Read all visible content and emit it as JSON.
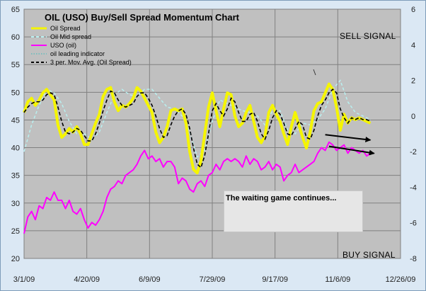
{
  "chart_data": {
    "type": "line",
    "title": "OIL (USO) Buy/Sell Spread Momentum Chart",
    "x_labels": [
      "3/1/09",
      "4/20/09",
      "6/9/09",
      "7/29/09",
      "9/17/09",
      "11/6/09",
      "12/26/09"
    ],
    "x_range": [
      "3/1/09",
      "12/26/09"
    ],
    "y_left": {
      "ticks": [
        20,
        25,
        30,
        35,
        40,
        45,
        50,
        55,
        60,
        65
      ],
      "range": [
        20,
        65
      ]
    },
    "y_right": {
      "ticks": [
        -8,
        -6,
        -4,
        -2,
        0,
        2,
        4,
        6
      ],
      "range": [
        -8,
        6
      ]
    },
    "grid": true,
    "legend_position": "top-left",
    "legend": [
      {
        "label": "Oil Spread",
        "style": "solid",
        "color": "#f5f500"
      },
      {
        "label": "Oil Mid spread",
        "style": "dashed",
        "color": "#b8f0f0"
      },
      {
        "label": "USO (oil)",
        "style": "solid",
        "color": "#ff00ff"
      },
      {
        "label": "oil leading indicator",
        "style": "dotted",
        "color": "#33bbbb"
      },
      {
        "label": "3 per. Mov. Avg. (Oil Spread)",
        "style": "dashed",
        "color": "#000000"
      }
    ],
    "signals": {
      "sell": "SELL SIGNAL",
      "buy": "BUY SIGNAL"
    },
    "annotation": "The waiting game continues...",
    "series": [
      {
        "name": "Oil Spread",
        "axis": "right",
        "color": "#f5f500",
        "x": [
          "3/1/09",
          "3/4/09",
          "3/7/09",
          "3/10/09",
          "3/13/09",
          "3/16/09",
          "3/19/09",
          "3/22/09",
          "3/25/09",
          "3/28/09",
          "3/31/09",
          "4/3/09",
          "4/6/09",
          "4/9/09",
          "4/12/09",
          "4/15/09",
          "4/18/09",
          "4/21/09",
          "4/24/09",
          "4/27/09",
          "4/30/09",
          "5/3/09",
          "5/6/09",
          "5/9/09",
          "5/12/09",
          "5/15/09",
          "5/18/09",
          "5/21/09",
          "5/24/09",
          "5/27/09",
          "5/30/09",
          "6/2/09",
          "6/5/09",
          "6/8/09",
          "6/11/09",
          "6/14/09",
          "6/17/09",
          "6/20/09",
          "6/23/09",
          "6/26/09",
          "6/29/09",
          "7/2/09",
          "7/5/09",
          "7/8/09",
          "7/11/09",
          "7/14/09",
          "7/17/09",
          "7/20/09",
          "7/23/09",
          "7/26/09",
          "7/29/09",
          "8/1/09",
          "8/4/09",
          "8/7/09",
          "8/10/09",
          "8/13/09",
          "8/16/09",
          "8/19/09",
          "8/22/09",
          "8/25/09",
          "8/28/09",
          "8/31/09",
          "9/3/09",
          "9/6/09",
          "9/9/09",
          "9/12/09",
          "9/15/09",
          "9/18/09",
          "9/21/09",
          "9/24/09",
          "9/27/09",
          "9/30/09",
          "10/3/09",
          "10/6/09",
          "10/9/09",
          "10/12/09",
          "10/15/09",
          "10/18/09",
          "10/21/09",
          "10/24/09",
          "10/27/09",
          "10/30/09",
          "11/2/09",
          "11/5/09",
          "11/8/09",
          "11/11/09",
          "11/14/09",
          "11/17/09",
          "11/20/09",
          "11/23/09",
          "11/26/09",
          "11/29/09",
          "12/2/09"
        ],
        "y": [
          0.2,
          0.8,
          1.0,
          0.6,
          0.9,
          1.3,
          1.5,
          1.2,
          0.9,
          -0.5,
          -1.2,
          -1.0,
          -0.7,
          -0.9,
          -0.6,
          -1.0,
          -1.6,
          -1.6,
          -1.0,
          -0.4,
          0.1,
          1.1,
          1.5,
          1.6,
          0.8,
          0.3,
          0.6,
          0.5,
          0.7,
          1.0,
          1.6,
          1.4,
          1.0,
          0.6,
          0.2,
          -0.9,
          -1.5,
          -1.2,
          -0.6,
          0.3,
          0.4,
          0.3,
          0.4,
          -0.4,
          -2.0,
          -3.0,
          -3.2,
          -2.5,
          -1.0,
          0.5,
          1.3,
          0.3,
          -0.6,
          0.4,
          1.3,
          1.2,
          0.0,
          -0.6,
          -0.4,
          0.2,
          0.6,
          -0.3,
          -1.2,
          -1.5,
          -1.1,
          0.2,
          0.6,
          0.1,
          -0.3,
          -1.0,
          -1.6,
          -0.6,
          0.2,
          -0.5,
          -1.2,
          -1.8,
          -0.9,
          0.3,
          0.7,
          0.8,
          1.3,
          1.8,
          1.5,
          0.5,
          -0.8,
          0.1,
          -0.4,
          -0.1,
          -0.2,
          -0.1,
          -0.2,
          -0.3,
          -0.4
        ]
      },
      {
        "name": "3 per. Mov. Avg. (Oil Spread)",
        "axis": "right",
        "color": "#000000",
        "x": [
          "3/1/09",
          "3/4/09",
          "3/7/09",
          "3/10/09",
          "3/13/09",
          "3/16/09",
          "3/19/09",
          "3/22/09",
          "3/25/09",
          "3/28/09",
          "3/31/09",
          "4/3/09",
          "4/6/09",
          "4/9/09",
          "4/12/09",
          "4/15/09",
          "4/18/09",
          "4/21/09",
          "4/24/09",
          "4/27/09",
          "4/30/09",
          "5/3/09",
          "5/6/09",
          "5/9/09",
          "5/12/09",
          "5/15/09",
          "5/18/09",
          "5/21/09",
          "5/24/09",
          "5/27/09",
          "5/30/09",
          "6/2/09",
          "6/5/09",
          "6/8/09",
          "6/11/09",
          "6/14/09",
          "6/17/09",
          "6/20/09",
          "6/23/09",
          "6/26/09",
          "6/29/09",
          "7/2/09",
          "7/5/09",
          "7/8/09",
          "7/11/09",
          "7/14/09",
          "7/17/09",
          "7/20/09",
          "7/23/09",
          "7/26/09",
          "7/29/09",
          "8/1/09",
          "8/4/09",
          "8/7/09",
          "8/10/09",
          "8/13/09",
          "8/16/09",
          "8/19/09",
          "8/22/09",
          "8/25/09",
          "8/28/09",
          "8/31/09",
          "9/3/09",
          "9/6/09",
          "9/9/09",
          "9/12/09",
          "9/15/09",
          "9/18/09",
          "9/21/09",
          "9/24/09",
          "9/27/09",
          "9/30/09",
          "10/3/09",
          "10/6/09",
          "10/9/09",
          "10/12/09",
          "10/15/09",
          "10/18/09",
          "10/21/09",
          "10/24/09",
          "10/27/09",
          "10/30/09",
          "11/2/09",
          "11/5/09",
          "11/8/09",
          "11/11/09",
          "11/14/09",
          "11/17/09",
          "11/20/09",
          "11/23/09",
          "11/26/09",
          "11/29/09",
          "12/2/09"
        ],
        "y": [
          0.2,
          0.5,
          0.7,
          0.8,
          0.8,
          0.9,
          1.2,
          1.3,
          1.2,
          0.5,
          -0.3,
          -0.9,
          -1.0,
          -0.9,
          -0.7,
          -0.8,
          -1.1,
          -1.4,
          -1.4,
          -1.0,
          -0.4,
          0.3,
          0.9,
          1.4,
          1.3,
          0.9,
          0.6,
          0.5,
          0.6,
          0.7,
          1.1,
          1.3,
          1.3,
          1.0,
          0.6,
          -0.0,
          -0.7,
          -1.2,
          -1.1,
          -0.5,
          0.0,
          0.3,
          0.4,
          0.1,
          -0.7,
          -1.8,
          -2.7,
          -2.9,
          -2.2,
          -1.0,
          0.3,
          0.7,
          0.3,
          0.0,
          0.4,
          1.0,
          0.8,
          0.2,
          -0.3,
          -0.3,
          0.1,
          0.2,
          -0.3,
          -1.0,
          -1.3,
          -0.8,
          -0.1,
          0.3,
          0.1,
          -0.4,
          -1.0,
          -1.1,
          -0.7,
          -0.3,
          -0.5,
          -1.2,
          -1.3,
          -0.8,
          0.0,
          0.6,
          0.9,
          1.3,
          1.5,
          1.3,
          0.4,
          -0.1,
          -0.4,
          -0.1,
          -0.2,
          -0.1,
          -0.2,
          -0.2,
          -0.3
        ]
      },
      {
        "name": "Oil Mid spread",
        "axis": "right",
        "color": "#b8f0f0",
        "x": [
          "3/1/09",
          "3/7/09",
          "3/13/09",
          "3/19/09",
          "3/25/09",
          "3/31/09",
          "4/6/09",
          "4/12/09",
          "4/18/09",
          "4/24/09",
          "4/30/09",
          "5/6/09",
          "5/12/09",
          "5/18/09",
          "5/24/09",
          "5/30/09",
          "6/5/09",
          "6/11/09",
          "6/17/09",
          "6/23/09",
          "6/29/09",
          "7/5/09",
          "7/11/09",
          "7/17/09",
          "7/23/09",
          "7/29/09",
          "8/4/09",
          "8/10/09",
          "8/16/09",
          "8/22/09",
          "8/28/09",
          "9/3/09",
          "9/9/09",
          "9/15/09",
          "9/21/09",
          "9/27/09",
          "10/3/09",
          "10/9/09",
          "10/15/09",
          "10/21/09",
          "10/27/09",
          "11/2/09",
          "11/8/09",
          "11/14/09",
          "11/20/09",
          "11/26/09",
          "12/2/09"
        ],
        "y": [
          -2.0,
          -0.5,
          0.6,
          1.5,
          1.3,
          0.7,
          -0.3,
          -1.0,
          -1.0,
          -1.3,
          -0.9,
          0.2,
          1.2,
          1.5,
          1.2,
          1.1,
          1.5,
          1.5,
          1.0,
          0.5,
          0.4,
          0.0,
          -0.9,
          -2.3,
          -1.9,
          -0.3,
          0.9,
          0.7,
          0.5,
          0.3,
          0.2,
          0.0,
          -0.5,
          0.3,
          0.3,
          -0.8,
          -1.0,
          -0.4,
          -0.5,
          -0.2,
          0.4,
          1.5,
          2.0,
          0.8,
          0.2,
          0.0,
          -0.2
        ]
      },
      {
        "name": "USO (oil)",
        "axis": "left",
        "color": "#ff00ff",
        "x": [
          "3/1/09",
          "3/4/09",
          "3/7/09",
          "3/10/09",
          "3/13/09",
          "3/16/09",
          "3/19/09",
          "3/22/09",
          "3/25/09",
          "3/28/09",
          "3/31/09",
          "4/3/09",
          "4/6/09",
          "4/9/09",
          "4/12/09",
          "4/15/09",
          "4/18/09",
          "4/21/09",
          "4/24/09",
          "4/27/09",
          "4/30/09",
          "5/3/09",
          "5/6/09",
          "5/9/09",
          "5/12/09",
          "5/15/09",
          "5/18/09",
          "5/21/09",
          "5/24/09",
          "5/27/09",
          "5/30/09",
          "6/2/09",
          "6/5/09",
          "6/8/09",
          "6/11/09",
          "6/14/09",
          "6/17/09",
          "6/20/09",
          "6/23/09",
          "6/26/09",
          "6/29/09",
          "7/2/09",
          "7/5/09",
          "7/8/09",
          "7/11/09",
          "7/14/09",
          "7/17/09",
          "7/20/09",
          "7/23/09",
          "7/26/09",
          "7/29/09",
          "8/1/09",
          "8/4/09",
          "8/7/09",
          "8/10/09",
          "8/13/09",
          "8/16/09",
          "8/19/09",
          "8/22/09",
          "8/25/09",
          "8/28/09",
          "8/31/09",
          "9/3/09",
          "9/6/09",
          "9/9/09",
          "9/12/09",
          "9/15/09",
          "9/18/09",
          "9/21/09",
          "9/24/09",
          "9/27/09",
          "9/30/09",
          "10/3/09",
          "10/6/09",
          "10/9/09",
          "10/12/09",
          "10/15/09",
          "10/18/09",
          "10/21/09",
          "10/24/09",
          "10/27/09",
          "10/30/09",
          "11/2/09",
          "11/5/09",
          "11/8/09",
          "11/11/09",
          "11/14/09",
          "11/17/09",
          "11/20/09",
          "11/23/09",
          "11/26/09",
          "11/29/09",
          "12/2/09"
        ],
        "y": [
          24.5,
          27.5,
          28.5,
          27.0,
          29.5,
          29.0,
          31.0,
          30.5,
          32.0,
          30.5,
          30.5,
          29.0,
          30.5,
          28.5,
          28.0,
          29.0,
          27.0,
          25.5,
          26.5,
          26.0,
          27.0,
          28.5,
          31.0,
          32.5,
          33.0,
          34.0,
          33.5,
          35.0,
          35.5,
          36.0,
          37.0,
          38.5,
          39.5,
          38.0,
          38.5,
          37.5,
          38.0,
          36.5,
          37.5,
          37.5,
          36.5,
          33.5,
          34.5,
          34.0,
          32.5,
          32.0,
          33.5,
          34.0,
          33.0,
          35.0,
          35.5,
          37.0,
          36.0,
          37.5,
          38.0,
          37.5,
          38.0,
          37.5,
          36.5,
          38.5,
          37.0,
          38.0,
          37.5,
          36.0,
          36.5,
          37.5,
          36.0,
          37.0,
          36.5,
          34.0,
          35.0,
          35.5,
          37.0,
          35.5,
          36.0,
          36.5,
          37.0,
          37.5,
          39.0,
          40.0,
          39.5,
          41.0,
          40.5,
          39.5,
          40.0,
          40.5,
          39.0,
          40.0,
          39.5,
          39.0,
          39.5,
          38.5,
          39.0
        ]
      },
      {
        "name": "oil leading indicator",
        "axis": "right",
        "color": "#33bbbb",
        "x": [],
        "y": []
      }
    ],
    "trend_arrows": [
      {
        "from": [
          "10/27/09",
          -1.05
        ],
        "to": [
          "12/2/09",
          -1.35
        ]
      },
      {
        "from": [
          "10/30/09",
          -1.7
        ],
        "to": [
          "12/5/09",
          -2.1
        ]
      }
    ]
  }
}
